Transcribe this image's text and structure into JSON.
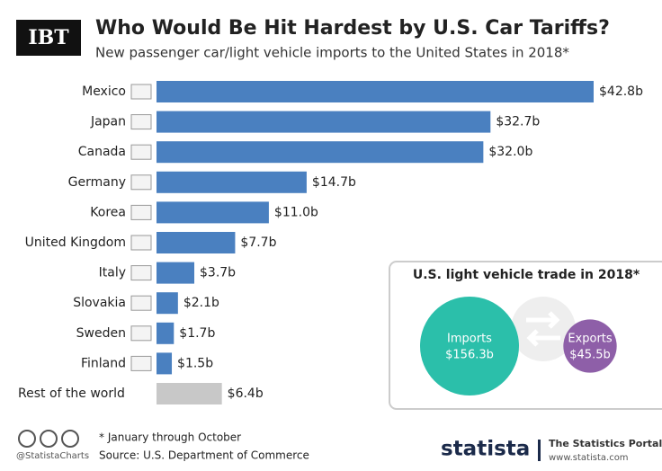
{
  "header": {
    "logo": "IBT",
    "title": "Who Would Be Hit Hardest by U.S. Car Tariffs?",
    "subtitle": "New passenger car/light vehicle imports to the United States in 2018*"
  },
  "chart_data": [
    {
      "type": "bar",
      "categories": [
        "Mexico",
        "Japan",
        "Canada",
        "Germany",
        "Korea",
        "United Kingdom",
        "Italy",
        "Slovakia",
        "Sweden",
        "Finland",
        "Rest of the world"
      ],
      "values": [
        42.8,
        32.7,
        32.0,
        14.7,
        11.0,
        7.7,
        3.7,
        2.1,
        1.7,
        1.5,
        6.4
      ],
      "value_labels": [
        "$42.8b",
        "$32.7b",
        "$32.0b",
        "$14.7b",
        "$11.0b",
        "$7.7b",
        "$3.7b",
        "$2.1b",
        "$1.7b",
        "$1.5b",
        "$6.4b"
      ],
      "colors": [
        "#4a80c0",
        "#4a80c0",
        "#4a80c0",
        "#4a80c0",
        "#4a80c0",
        "#4a80c0",
        "#4a80c0",
        "#4a80c0",
        "#4a80c0",
        "#4a80c0",
        "#c8c8c8"
      ]
    },
    {
      "type": "bubble",
      "title": "U.S. light vehicle trade in 2018*",
      "categories": [
        "Imports",
        "Exports"
      ],
      "values": [
        156.3,
        45.5
      ],
      "value_labels": [
        "$156.3b",
        "$45.5b"
      ],
      "colors": [
        "#2bbfaa",
        "#8e5fa8"
      ]
    }
  ],
  "footer": {
    "note": "* January through October",
    "source": "Source: U.S. Department of Commerce",
    "handle": "@StatistaCharts",
    "brand": "statista",
    "tagline": "The Statistics Portal",
    "url": "www.statista.com"
  }
}
